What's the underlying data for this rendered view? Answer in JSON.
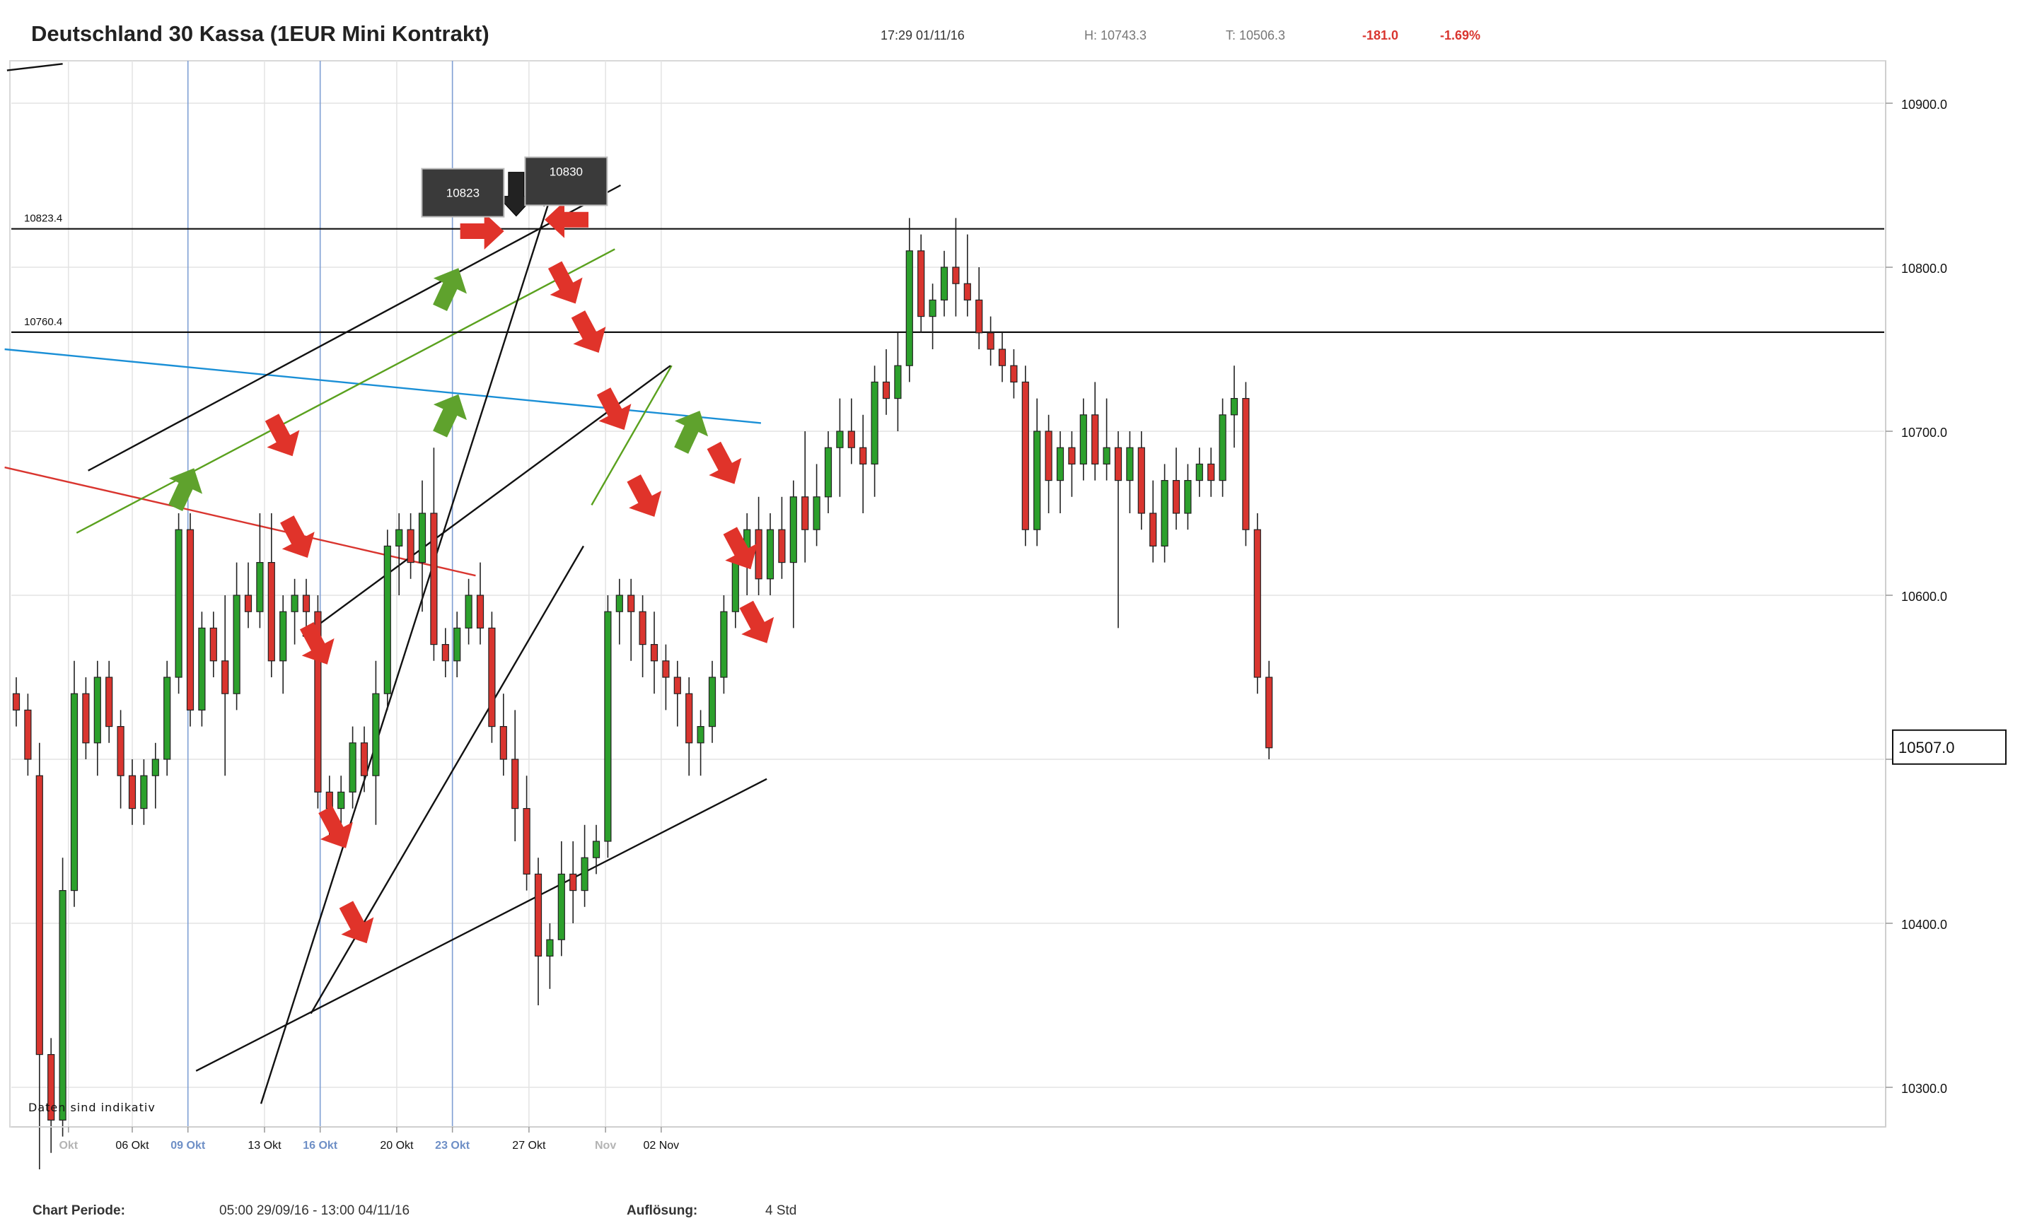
{
  "header": {
    "title": "Deutschland 30 Kassa (1EUR Mini Kontrakt)",
    "time": "17:29 01/11/16",
    "high": "H: 10743.3",
    "low": "T: 10506.3",
    "change": "-181.0",
    "change_pct": "-1.69%"
  },
  "footer": {
    "period_label": "Chart Periode:",
    "period_value": "05:00 29/09/16 - 13:00 04/11/16",
    "resolution_label": "Auflösung:",
    "resolution_value": "4 Std"
  },
  "note": "Daten sind indikativ",
  "colors": {
    "up": "#2ca02c",
    "down": "#d9352f",
    "arrow_down": "#e0332a",
    "arrow_up": "#5fa22d",
    "arrow_black": "#222222",
    "blue_line": "#1a8fd6",
    "red_line": "#d9352f",
    "green_line": "#5aa11e",
    "week_line": "#7f9fd4"
  },
  "chart_data": {
    "type": "candlestick",
    "instrument": "Deutschland 30 Kassa (1EUR Mini Kontrakt)",
    "resolution": "4 Std",
    "ylim": [
      10280,
      10935
    ],
    "y_ticks": [
      10300.0,
      10400.0,
      10500.0,
      10600.0,
      10700.0,
      10800.0,
      10900.0
    ],
    "y_tick_labels": [
      "10300.0",
      "10400.0",
      "",
      "10600.0",
      "10700.0",
      "10800.0",
      "10900.0"
    ],
    "x_ticks": [
      {
        "label": "Okt",
        "bar": 4.5,
        "style": "dim"
      },
      {
        "label": "06 Okt",
        "bar": 10,
        "style": "normal"
      },
      {
        "label": "09 Okt",
        "bar": 14.8,
        "style": "highlight"
      },
      {
        "label": "13 Okt",
        "bar": 21.4,
        "style": "normal"
      },
      {
        "label": "16 Okt",
        "bar": 26.2,
        "style": "highlight"
      },
      {
        "label": "20 Okt",
        "bar": 32.8,
        "style": "normal"
      },
      {
        "label": "23 Okt",
        "bar": 37.6,
        "style": "highlight"
      },
      {
        "label": "27 Okt",
        "bar": 44.2,
        "style": "normal"
      },
      {
        "label": "Nov",
        "bar": 50.8,
        "style": "dim"
      },
      {
        "label": "02 Nov",
        "bar": 55.6,
        "style": "normal"
      }
    ],
    "candles": [
      [
        10540,
        10550,
        10520,
        10530
      ],
      [
        10530,
        10540,
        10490,
        10500
      ],
      [
        10490,
        10510,
        10250,
        10320
      ],
      [
        10320,
        10330,
        10260,
        10280
      ],
      [
        10280,
        10440,
        10270,
        10420
      ],
      [
        10420,
        10560,
        10410,
        10540
      ],
      [
        10540,
        10550,
        10500,
        10510
      ],
      [
        10510,
        10560,
        10490,
        10550
      ],
      [
        10550,
        10560,
        10510,
        10520
      ],
      [
        10520,
        10530,
        10470,
        10490
      ],
      [
        10490,
        10500,
        10460,
        10470
      ],
      [
        10470,
        10500,
        10460,
        10490
      ],
      [
        10490,
        10510,
        10470,
        10500
      ],
      [
        10500,
        10560,
        10490,
        10550
      ],
      [
        10550,
        10650,
        10540,
        10640
      ],
      [
        10640,
        10650,
        10520,
        10530
      ],
      [
        10530,
        10590,
        10520,
        10580
      ],
      [
        10580,
        10590,
        10550,
        10560
      ],
      [
        10560,
        10600,
        10490,
        10540
      ],
      [
        10540,
        10620,
        10530,
        10600
      ],
      [
        10600,
        10620,
        10580,
        10590
      ],
      [
        10590,
        10650,
        10580,
        10620
      ],
      [
        10620,
        10650,
        10550,
        10560
      ],
      [
        10560,
        10600,
        10540,
        10590
      ],
      [
        10590,
        10610,
        10570,
        10600
      ],
      [
        10600,
        10610,
        10580,
        10590
      ],
      [
        10590,
        10600,
        10470,
        10480
      ],
      [
        10480,
        10490,
        10450,
        10470
      ],
      [
        10470,
        10490,
        10460,
        10480
      ],
      [
        10480,
        10520,
        10470,
        10510
      ],
      [
        10510,
        10520,
        10480,
        10490
      ],
      [
        10490,
        10560,
        10460,
        10540
      ],
      [
        10540,
        10640,
        10530,
        10630
      ],
      [
        10630,
        10650,
        10600,
        10640
      ],
      [
        10640,
        10650,
        10610,
        10620
      ],
      [
        10620,
        10670,
        10590,
        10650
      ],
      [
        10650,
        10690,
        10560,
        10570
      ],
      [
        10570,
        10580,
        10550,
        10560
      ],
      [
        10560,
        10590,
        10550,
        10580
      ],
      [
        10580,
        10610,
        10570,
        10600
      ],
      [
        10600,
        10620,
        10570,
        10580
      ],
      [
        10580,
        10590,
        10510,
        10520
      ],
      [
        10520,
        10540,
        10490,
        10500
      ],
      [
        10500,
        10530,
        10450,
        10470
      ],
      [
        10470,
        10490,
        10420,
        10430
      ],
      [
        10430,
        10440,
        10350,
        10380
      ],
      [
        10380,
        10400,
        10360,
        10390
      ],
      [
        10390,
        10450,
        10380,
        10430
      ],
      [
        10430,
        10450,
        10400,
        10420
      ],
      [
        10420,
        10460,
        10410,
        10440
      ],
      [
        10440,
        10460,
        10430,
        10450
      ],
      [
        10450,
        10600,
        10440,
        10590
      ],
      [
        10590,
        10610,
        10570,
        10600
      ],
      [
        10600,
        10610,
        10560,
        10590
      ],
      [
        10590,
        10600,
        10550,
        10570
      ],
      [
        10570,
        10590,
        10540,
        10560
      ],
      [
        10560,
        10570,
        10530,
        10550
      ],
      [
        10550,
        10560,
        10520,
        10540
      ],
      [
        10540,
        10550,
        10490,
        10510
      ],
      [
        10510,
        10530,
        10490,
        10520
      ],
      [
        10520,
        10560,
        10510,
        10550
      ],
      [
        10550,
        10600,
        10540,
        10590
      ],
      [
        10590,
        10630,
        10580,
        10620
      ],
      [
        10620,
        10650,
        10600,
        10640
      ],
      [
        10640,
        10660,
        10600,
        10610
      ],
      [
        10610,
        10650,
        10600,
        10640
      ],
      [
        10640,
        10660,
        10610,
        10620
      ],
      [
        10620,
        10670,
        10580,
        10660
      ],
      [
        10660,
        10700,
        10620,
        10640
      ],
      [
        10640,
        10680,
        10630,
        10660
      ],
      [
        10660,
        10700,
        10650,
        10690
      ],
      [
        10690,
        10720,
        10660,
        10700
      ],
      [
        10700,
        10720,
        10680,
        10690
      ],
      [
        10690,
        10710,
        10650,
        10680
      ],
      [
        10680,
        10740,
        10660,
        10730
      ],
      [
        10730,
        10750,
        10710,
        10720
      ],
      [
        10720,
        10760,
        10700,
        10740
      ],
      [
        10740,
        10830,
        10730,
        10810
      ],
      [
        10810,
        10820,
        10760,
        10770
      ],
      [
        10770,
        10790,
        10750,
        10780
      ],
      [
        10780,
        10810,
        10770,
        10800
      ],
      [
        10800,
        10830,
        10770,
        10790
      ],
      [
        10790,
        10820,
        10770,
        10780
      ],
      [
        10780,
        10800,
        10750,
        10760
      ],
      [
        10760,
        10770,
        10740,
        10750
      ],
      [
        10750,
        10760,
        10730,
        10740
      ],
      [
        10740,
        10750,
        10720,
        10730
      ],
      [
        10730,
        10740,
        10630,
        10640
      ],
      [
        10640,
        10720,
        10630,
        10700
      ],
      [
        10700,
        10710,
        10650,
        10670
      ],
      [
        10670,
        10700,
        10650,
        10690
      ],
      [
        10690,
        10700,
        10660,
        10680
      ],
      [
        10680,
        10720,
        10670,
        10710
      ],
      [
        10710,
        10730,
        10670,
        10680
      ],
      [
        10680,
        10720,
        10670,
        10690
      ],
      [
        10690,
        10700,
        10580,
        10670
      ],
      [
        10670,
        10700,
        10650,
        10690
      ],
      [
        10690,
        10700,
        10640,
        10650
      ],
      [
        10650,
        10670,
        10620,
        10630
      ],
      [
        10630,
        10680,
        10620,
        10670
      ],
      [
        10670,
        10690,
        10640,
        10650
      ],
      [
        10650,
        10680,
        10640,
        10670
      ],
      [
        10670,
        10690,
        10660,
        10680
      ],
      [
        10680,
        10690,
        10660,
        10670
      ],
      [
        10670,
        10720,
        10660,
        10710
      ],
      [
        10710,
        10740,
        10690,
        10720
      ],
      [
        10720,
        10730,
        10630,
        10640
      ],
      [
        10640,
        10650,
        10540,
        10550
      ],
      [
        10550,
        10560,
        10500,
        10507
      ]
    ],
    "last_price": "10507.0",
    "horizontal_levels": [
      {
        "label": "10823.4",
        "value": 10823.4
      },
      {
        "label": "10760.4",
        "value": 10760.4
      }
    ],
    "callouts": [
      {
        "label": "10823",
        "value": 10823
      },
      {
        "label": "10830",
        "value": 10830
      }
    ],
    "trend_lines": [
      {
        "name": "blue",
        "from": [
          -1,
          10750
        ],
        "to": [
          64.2,
          10705
        ]
      },
      {
        "name": "red",
        "from": [
          -1,
          10678
        ],
        "to": [
          39.6,
          10612
        ]
      },
      {
        "name": "green-upper",
        "from": [
          5.2,
          10638
        ],
        "to": [
          51.6,
          10811
        ]
      },
      {
        "name": "green-lower",
        "from": [
          49.6,
          10655
        ],
        "to": [
          56.5,
          10740
        ]
      },
      {
        "name": "black-upper",
        "from": [
          6.2,
          10676
        ],
        "to": [
          52.1,
          10850
        ]
      },
      {
        "name": "black-steep",
        "from": [
          21.1,
          10290
        ],
        "to": [
          46.7,
          10857
        ]
      },
      {
        "name": "black-lower",
        "from": [
          15.5,
          10310
        ],
        "to": [
          64.7,
          10488
        ]
      },
      {
        "name": "black-top-left",
        "from": [
          -0.8,
          10920
        ],
        "to": [
          4,
          10924
        ]
      },
      {
        "name": "black-mid",
        "from": [
          24.7,
          10575
        ],
        "to": [
          56.4,
          10740
        ]
      },
      {
        "name": "black-rise",
        "from": [
          25.4,
          10345
        ],
        "to": [
          48.9,
          10630
        ]
      }
    ],
    "arrows": [
      {
        "dir": "up",
        "bar": 14.5,
        "value": 10665
      },
      {
        "dir": "up",
        "bar": 37.3,
        "value": 10787
      },
      {
        "dir": "up",
        "bar": 37.3,
        "value": 10710
      },
      {
        "dir": "up",
        "bar": 58.1,
        "value": 10700
      },
      {
        "dir": "down",
        "bar": 22.9,
        "value": 10697
      },
      {
        "dir": "down",
        "bar": 24.2,
        "value": 10635
      },
      {
        "dir": "down",
        "bar": 25.9,
        "value": 10570
      },
      {
        "dir": "down",
        "bar": 27.5,
        "value": 10458
      },
      {
        "dir": "down",
        "bar": 29.3,
        "value": 10400
      },
      {
        "dir": "right",
        "bar": 40.1,
        "value": 10822
      },
      {
        "dir": "left",
        "bar": 47.5,
        "value": 10829
      },
      {
        "dir": "down",
        "bar": 47.3,
        "value": 10790
      },
      {
        "dir": "down",
        "bar": 49.3,
        "value": 10760
      },
      {
        "dir": "down",
        "bar": 51.5,
        "value": 10713
      },
      {
        "dir": "down",
        "bar": 54.1,
        "value": 10660
      },
      {
        "dir": "down",
        "bar": 61.0,
        "value": 10680
      },
      {
        "dir": "down",
        "bar": 62.4,
        "value": 10628
      },
      {
        "dir": "down",
        "bar": 63.8,
        "value": 10583
      },
      {
        "dir": "down-black",
        "bar": 43.1,
        "value": 10845
      },
      {
        "dir": "down-black",
        "bar": 45.5,
        "value": 10851
      }
    ]
  }
}
